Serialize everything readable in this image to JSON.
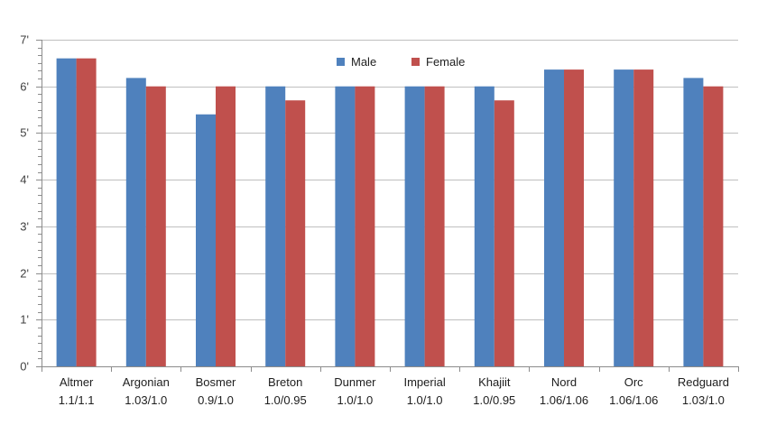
{
  "chart_data": {
    "type": "bar",
    "categories": [
      "Altmer",
      "Argonian",
      "Bosmer",
      "Breton",
      "Dunmer",
      "Imperial",
      "Khajiit",
      "Nord",
      "Orc",
      "Redguard"
    ],
    "category_ratios": [
      "1.1/1.1",
      "1.03/1.0",
      "0.9/1.0",
      "1.0/0.95",
      "1.0/1.0",
      "1.0/1.0",
      "1.0/0.95",
      "1.06/1.06",
      "1.06/1.06",
      "1.03/1.0"
    ],
    "series": [
      {
        "name": "Male",
        "color": "#4F81BD",
        "values": [
          6.6,
          6.18,
          5.4,
          6.0,
          6.0,
          6.0,
          6.0,
          6.36,
          6.36,
          6.18
        ]
      },
      {
        "name": "Female",
        "color": "#C0504D",
        "values": [
          6.6,
          6.0,
          6.0,
          5.7,
          6.0,
          6.0,
          5.7,
          6.36,
          6.36,
          6.0
        ]
      }
    ],
    "ylim": [
      0,
      7
    ],
    "y_ticks": [
      {
        "value": 0,
        "label": "0'"
      },
      {
        "value": 1,
        "label": "1'"
      },
      {
        "value": 2,
        "label": "2'"
      },
      {
        "value": 3,
        "label": "3'"
      },
      {
        "value": 4,
        "label": "4'"
      },
      {
        "value": 5,
        "label": "5'"
      },
      {
        "value": 6,
        "label": "6'"
      },
      {
        "value": 7,
        "label": "7'"
      }
    ],
    "minor_ticks_per_major": 6,
    "grid": true,
    "legend_position": "top-center",
    "gridline_color": "#BFBFBF"
  }
}
